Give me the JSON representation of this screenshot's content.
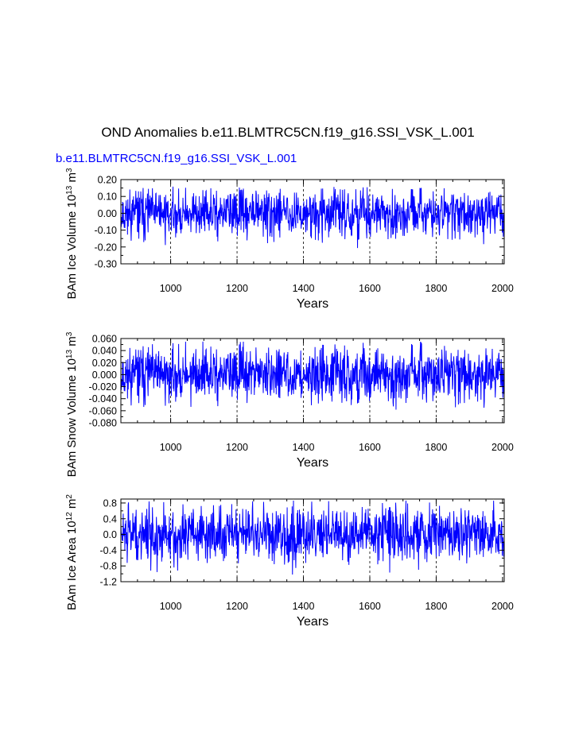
{
  "figure": {
    "title": "OND Anomalies b.e11.BLMTRC5CN.f19_g16.SSI_VSK_L.001",
    "case_label": "b.e11.BLMTRC5CN.f19_g16.SSI_VSK_L.001",
    "colors": {
      "line": "#0000ff",
      "case_label": "#0000ff",
      "axes": "#000000",
      "ref_lines": "#000000"
    }
  },
  "chart_data": [
    {
      "type": "line",
      "ylabel": "BAm Ice Volume 10^13 m^3",
      "xlabel": "Years",
      "xlim": [
        850,
        2005
      ],
      "ylim": [
        -0.3,
        0.2
      ],
      "xticks": [
        1000,
        1200,
        1400,
        1600,
        1800,
        2000
      ],
      "yticks": [
        "0.20",
        "0.10",
        "0.00",
        "-0.10",
        "-0.20",
        "-0.30"
      ],
      "ytick_values": [
        0.2,
        0.1,
        0.0,
        -0.1,
        -0.2,
        -0.3
      ],
      "vertical_reference_lines": [
        1000,
        1200,
        1400,
        1600,
        1800
      ],
      "series": [
        {
          "x_start": 850,
          "x_end": 2005,
          "amplitude": 0.07,
          "extremes": [
            -0.22,
            0.16
          ],
          "seed": 11
        }
      ]
    },
    {
      "type": "line",
      "ylabel": "BAm Snow Volume 10^13 m^3",
      "xlabel": "Years",
      "xlim": [
        850,
        2005
      ],
      "ylim": [
        -0.08,
        0.06
      ],
      "xticks": [
        1000,
        1200,
        1400,
        1600,
        1800,
        2000
      ],
      "yticks": [
        "0.060",
        "0.040",
        "0.020",
        "0.000",
        "-0.020",
        "-0.040",
        "-0.060",
        "-0.080"
      ],
      "ytick_values": [
        0.06,
        0.04,
        0.02,
        0.0,
        -0.02,
        -0.04,
        -0.06,
        -0.08
      ],
      "vertical_reference_lines": [
        1000,
        1200,
        1400,
        1600,
        1800
      ],
      "series": [
        {
          "x_start": 850,
          "x_end": 2005,
          "amplitude": 0.022,
          "extremes": [
            -0.07,
            0.055
          ],
          "seed": 11
        }
      ]
    },
    {
      "type": "line",
      "ylabel": "BAm Ice Area 10^12 m^2",
      "xlabel": "Years",
      "xlim": [
        850,
        2005
      ],
      "ylim": [
        -1.2,
        0.9
      ],
      "xticks": [
        1000,
        1200,
        1400,
        1600,
        1800,
        2000
      ],
      "yticks": [
        "0.8",
        "0.4",
        "0.0",
        "-0.4",
        "-0.8",
        "-1.2"
      ],
      "ytick_values": [
        0.8,
        0.4,
        0.0,
        -0.4,
        -0.8,
        -1.2
      ],
      "vertical_reference_lines": [
        1000,
        1200,
        1400,
        1600,
        1800
      ],
      "series": [
        {
          "x_start": 850,
          "x_end": 2005,
          "amplitude": 0.35,
          "extremes": [
            -1.05,
            0.88
          ],
          "seed": 29
        }
      ]
    }
  ]
}
